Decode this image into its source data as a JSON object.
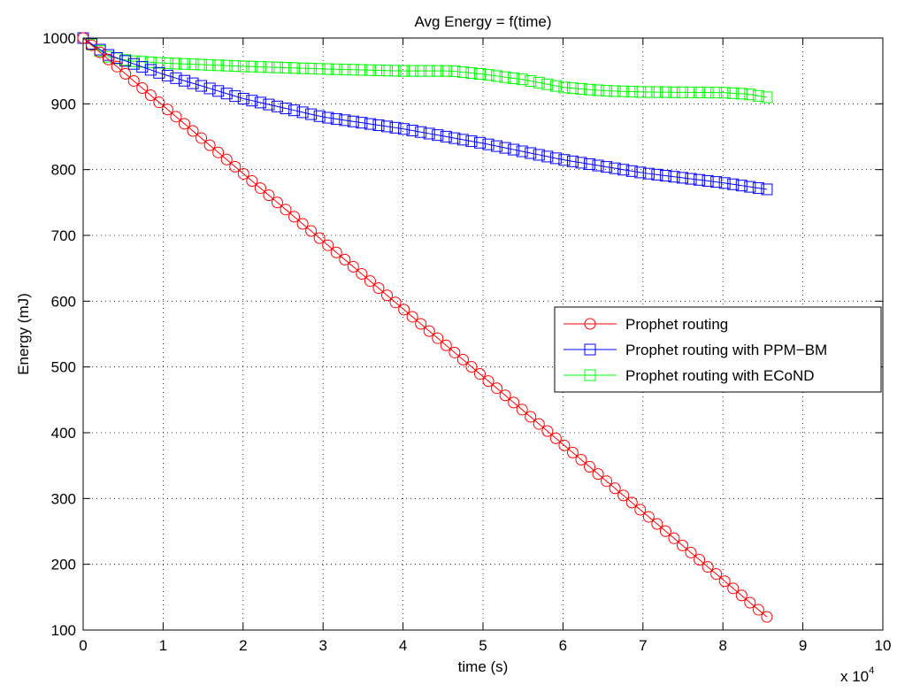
{
  "chart_data": {
    "type": "line",
    "title": "Avg Energy = f(time)",
    "xlabel": "time (s)",
    "ylabel": "Energy (mJ)",
    "x_multiplier_label": "x 10",
    "x_multiplier_exponent": "4",
    "xlim": [
      0,
      10
    ],
    "ylim": [
      100,
      1000
    ],
    "x_ticks": [
      0,
      1,
      2,
      3,
      4,
      5,
      6,
      7,
      8,
      9,
      10
    ],
    "y_ticks": [
      100,
      200,
      300,
      400,
      500,
      600,
      700,
      800,
      900,
      1000
    ],
    "grid": true,
    "legend_position": "right",
    "series": [
      {
        "name": "Prophet routing",
        "color": "#ff0000",
        "marker": "circle",
        "x_start": 0,
        "x_end": 8.55,
        "points": 82,
        "y_start": 1000,
        "y_end": 120,
        "anchors": [
          [
            0,
            1000
          ],
          [
            8.55,
            120
          ]
        ]
      },
      {
        "name": "Prophet routing with PPM−BM",
        "color": "#0000ff",
        "marker": "square",
        "x_start": 0,
        "x_end": 8.55,
        "points": 82,
        "anchors": [
          [
            0,
            1000
          ],
          [
            0.3,
            975
          ],
          [
            1,
            945
          ],
          [
            2,
            908
          ],
          [
            3,
            880
          ],
          [
            4,
            862
          ],
          [
            5,
            840
          ],
          [
            6,
            815
          ],
          [
            7,
            795
          ],
          [
            8,
            780
          ],
          [
            8.55,
            770
          ]
        ]
      },
      {
        "name": "Prophet routing with ECoND",
        "color": "#00ff00",
        "marker": "square",
        "x_start": 0,
        "x_end": 8.55,
        "points": 82,
        "anchors": [
          [
            0,
            1000
          ],
          [
            0.3,
            972
          ],
          [
            0.6,
            965
          ],
          [
            1,
            962
          ],
          [
            2,
            957
          ],
          [
            3,
            953
          ],
          [
            4,
            950
          ],
          [
            4.6,
            950
          ],
          [
            5,
            945
          ],
          [
            5.5,
            937
          ],
          [
            6,
            925
          ],
          [
            6.5,
            920
          ],
          [
            7,
            918
          ],
          [
            8,
            917
          ],
          [
            8.3,
            915
          ],
          [
            8.55,
            910
          ]
        ]
      }
    ]
  }
}
